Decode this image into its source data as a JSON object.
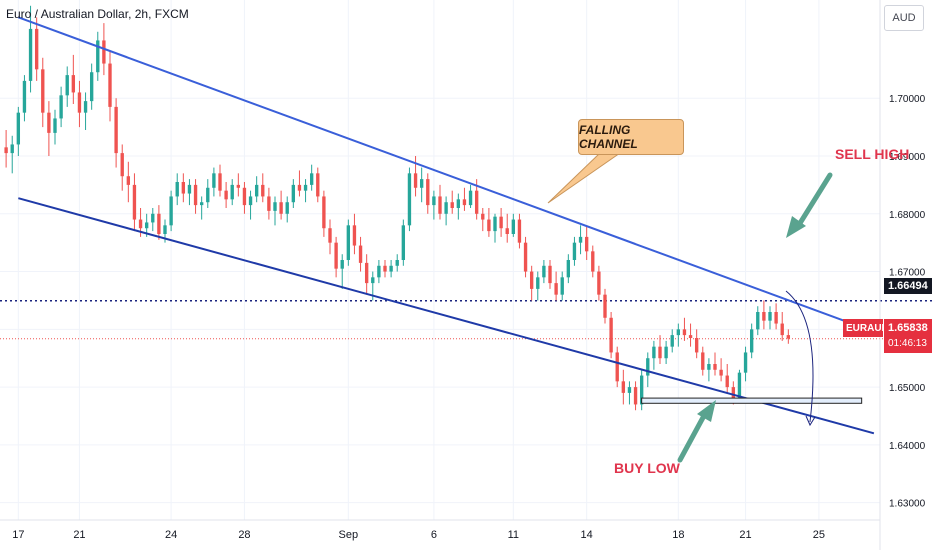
{
  "header": {
    "title": "Euro / Australian Dollar, 2h, FXCM",
    "currency": "AUD"
  },
  "annotations": {
    "channel_label": "FALLING CHANNEL",
    "sell_label": "SELL HIGH",
    "buy_label": "BUY LOW"
  },
  "price_tags": {
    "level_price": "1.66494",
    "symbol": "EURAUD",
    "last_price": "1.65838",
    "countdown": "01:46:13"
  },
  "colors": {
    "up": "#26a69a",
    "down": "#ef5350",
    "channel_upper": "#3a5fd9",
    "channel_lower": "#1f3aa8",
    "sell_buy_text": "#e0354d",
    "arrow": "#5aa38f",
    "grid": "#f0f3fa",
    "axis_text": "#131722"
  },
  "chart_data": {
    "type": "candlestick",
    "y_axis": {
      "range": [
        1.627,
        1.717
      ],
      "ticks": [
        "1.70000",
        "1.69000",
        "1.68000",
        "1.67000",
        "1.66000",
        "1.65000",
        "1.64000",
        "1.63000"
      ],
      "tick_values": [
        1.7,
        1.69,
        1.68,
        1.67,
        1.66,
        1.65,
        1.64,
        1.63
      ]
    },
    "x_axis": {
      "ticks": [
        "17",
        "21",
        "24",
        "28",
        "Sep",
        "6",
        "11",
        "14",
        "18",
        "21",
        "25"
      ],
      "tick_index": [
        2,
        12,
        27,
        39,
        56,
        70,
        83,
        95,
        110,
        121,
        133
      ],
      "index_range": [
        -1,
        143
      ]
    },
    "series": [
      {
        "ohlc": [
          [
            1.6915,
            1.6945,
            1.688,
            1.6905
          ],
          [
            1.6905,
            1.6935,
            1.687,
            1.692
          ],
          [
            1.692,
            1.6985,
            1.69,
            1.6975
          ],
          [
            1.6975,
            1.704,
            1.696,
            1.703
          ],
          [
            1.703,
            1.716,
            1.701,
            1.712
          ],
          [
            1.712,
            1.714,
            1.703,
            1.705
          ],
          [
            1.705,
            1.707,
            1.695,
            1.6975
          ],
          [
            1.6975,
            1.6995,
            1.69,
            1.694
          ],
          [
            1.694,
            1.698,
            1.692,
            1.6965
          ],
          [
            1.6965,
            1.702,
            1.695,
            1.7005
          ],
          [
            1.7005,
            1.7055,
            1.6985,
            1.704
          ],
          [
            1.704,
            1.7075,
            1.699,
            1.701
          ],
          [
            1.701,
            1.703,
            1.695,
            1.6975
          ],
          [
            1.6975,
            1.701,
            1.6945,
            1.6995
          ],
          [
            1.6995,
            1.706,
            1.698,
            1.7045
          ],
          [
            1.7045,
            1.7115,
            1.703,
            1.71
          ],
          [
            1.71,
            1.713,
            1.704,
            1.706
          ],
          [
            1.706,
            1.708,
            1.696,
            1.6985
          ],
          [
            1.6985,
            1.7,
            1.688,
            1.6905
          ],
          [
            1.6905,
            1.692,
            1.684,
            1.6865
          ],
          [
            1.6865,
            1.689,
            1.682,
            1.685
          ],
          [
            1.685,
            1.687,
            1.677,
            1.679
          ],
          [
            1.679,
            1.681,
            1.676,
            1.6775
          ],
          [
            1.6775,
            1.68,
            1.676,
            1.6785
          ],
          [
            1.6785,
            1.681,
            1.677,
            1.68
          ],
          [
            1.68,
            1.6815,
            1.6755,
            1.6765
          ],
          [
            1.6765,
            1.679,
            1.675,
            1.678
          ],
          [
            1.678,
            1.684,
            1.677,
            1.683
          ],
          [
            1.683,
            1.687,
            1.6815,
            1.6855
          ],
          [
            1.6855,
            1.687,
            1.682,
            1.6835
          ],
          [
            1.6835,
            1.686,
            1.6815,
            1.685
          ],
          [
            1.685,
            1.686,
            1.68,
            1.6815
          ],
          [
            1.6815,
            1.683,
            1.679,
            1.682
          ],
          [
            1.682,
            1.686,
            1.681,
            1.6845
          ],
          [
            1.6845,
            1.688,
            1.683,
            1.687
          ],
          [
            1.687,
            1.6885,
            1.683,
            1.684
          ],
          [
            1.684,
            1.6855,
            1.681,
            1.6825
          ],
          [
            1.6825,
            1.686,
            1.6815,
            1.685
          ],
          [
            1.685,
            1.687,
            1.683,
            1.6845
          ],
          [
            1.6845,
            1.6855,
            1.68,
            1.6815
          ],
          [
            1.6815,
            1.684,
            1.679,
            1.683
          ],
          [
            1.683,
            1.6865,
            1.682,
            1.685
          ],
          [
            1.685,
            1.687,
            1.682,
            1.683
          ],
          [
            1.683,
            1.6845,
            1.679,
            1.6805
          ],
          [
            1.6805,
            1.683,
            1.678,
            1.682
          ],
          [
            1.682,
            1.684,
            1.679,
            1.68
          ],
          [
            1.68,
            1.683,
            1.6785,
            1.682
          ],
          [
            1.682,
            1.686,
            1.681,
            1.685
          ],
          [
            1.685,
            1.6875,
            1.683,
            1.684
          ],
          [
            1.684,
            1.686,
            1.682,
            1.685
          ],
          [
            1.685,
            1.6885,
            1.684,
            1.687
          ],
          [
            1.687,
            1.688,
            1.682,
            1.683
          ],
          [
            1.683,
            1.684,
            1.676,
            1.6775
          ],
          [
            1.6775,
            1.679,
            1.673,
            1.675
          ],
          [
            1.675,
            1.676,
            1.669,
            1.6705
          ],
          [
            1.6705,
            1.673,
            1.667,
            1.672
          ],
          [
            1.672,
            1.679,
            1.671,
            1.678
          ],
          [
            1.678,
            1.68,
            1.673,
            1.6745
          ],
          [
            1.6745,
            1.676,
            1.67,
            1.6715
          ],
          [
            1.6715,
            1.673,
            1.666,
            1.668
          ],
          [
            1.668,
            1.67,
            1.665,
            1.669
          ],
          [
            1.669,
            1.672,
            1.668,
            1.671
          ],
          [
            1.671,
            1.672,
            1.669,
            1.67
          ],
          [
            1.67,
            1.672,
            1.669,
            1.671
          ],
          [
            1.671,
            1.673,
            1.67,
            1.672
          ],
          [
            1.672,
            1.679,
            1.671,
            1.678
          ],
          [
            1.678,
            1.688,
            1.677,
            1.687
          ],
          [
            1.687,
            1.69,
            1.683,
            1.6845
          ],
          [
            1.6845,
            1.688,
            1.682,
            1.686
          ],
          [
            1.686,
            1.687,
            1.68,
            1.6815
          ],
          [
            1.6815,
            1.684,
            1.679,
            1.683
          ],
          [
            1.683,
            1.685,
            1.679,
            1.68
          ],
          [
            1.68,
            1.683,
            1.678,
            1.682
          ],
          [
            1.682,
            1.684,
            1.68,
            1.681
          ],
          [
            1.681,
            1.6835,
            1.679,
            1.6825
          ],
          [
            1.6825,
            1.6845,
            1.6805,
            1.6815
          ],
          [
            1.6815,
            1.685,
            1.681,
            1.684
          ],
          [
            1.684,
            1.686,
            1.679,
            1.68
          ],
          [
            1.68,
            1.681,
            1.677,
            1.679
          ],
          [
            1.679,
            1.681,
            1.676,
            1.677
          ],
          [
            1.677,
            1.68,
            1.675,
            1.6795
          ],
          [
            1.6795,
            1.681,
            1.676,
            1.6775
          ],
          [
            1.6775,
            1.68,
            1.675,
            1.6765
          ],
          [
            1.6765,
            1.68,
            1.676,
            1.679
          ],
          [
            1.679,
            1.68,
            1.674,
            1.675
          ],
          [
            1.675,
            1.676,
            1.669,
            1.67
          ],
          [
            1.67,
            1.671,
            1.665,
            1.667
          ],
          [
            1.667,
            1.67,
            1.665,
            1.669
          ],
          [
            1.669,
            1.672,
            1.668,
            1.671
          ],
          [
            1.671,
            1.672,
            1.667,
            1.668
          ],
          [
            1.668,
            1.67,
            1.665,
            1.666
          ],
          [
            1.666,
            1.67,
            1.665,
            1.669
          ],
          [
            1.669,
            1.673,
            1.668,
            1.672
          ],
          [
            1.672,
            1.676,
            1.671,
            1.675
          ],
          [
            1.675,
            1.678,
            1.673,
            1.676
          ],
          [
            1.676,
            1.678,
            1.672,
            1.6735
          ],
          [
            1.6735,
            1.6745,
            1.669,
            1.67
          ],
          [
            1.67,
            1.671,
            1.665,
            1.666
          ],
          [
            1.666,
            1.667,
            1.661,
            1.662
          ],
          [
            1.662,
            1.663,
            1.655,
            1.656
          ],
          [
            1.656,
            1.657,
            1.65,
            1.651
          ],
          [
            1.651,
            1.653,
            1.647,
            1.649
          ],
          [
            1.649,
            1.651,
            1.647,
            1.65
          ],
          [
            1.65,
            1.651,
            1.646,
            1.647
          ],
          [
            1.647,
            1.653,
            1.646,
            1.652
          ],
          [
            1.652,
            1.656,
            1.65,
            1.655
          ],
          [
            1.655,
            1.658,
            1.653,
            1.657
          ],
          [
            1.657,
            1.659,
            1.654,
            1.655
          ],
          [
            1.655,
            1.658,
            1.654,
            1.657
          ],
          [
            1.657,
            1.66,
            1.656,
            1.659
          ],
          [
            1.659,
            1.661,
            1.657,
            1.66
          ],
          [
            1.66,
            1.662,
            1.658,
            1.659
          ],
          [
            1.659,
            1.661,
            1.657,
            1.6585
          ],
          [
            1.6585,
            1.66,
            1.655,
            1.656
          ],
          [
            1.656,
            1.657,
            1.652,
            1.653
          ],
          [
            1.653,
            1.655,
            1.651,
            1.654
          ],
          [
            1.654,
            1.656,
            1.652,
            1.653
          ],
          [
            1.653,
            1.655,
            1.651,
            1.652
          ],
          [
            1.652,
            1.654,
            1.649,
            1.65
          ],
          [
            1.65,
            1.651,
            1.647,
            1.648
          ],
          [
            1.648,
            1.653,
            1.6475,
            1.6525
          ],
          [
            1.6525,
            1.657,
            1.651,
            1.656
          ],
          [
            1.656,
            1.661,
            1.655,
            1.66
          ],
          [
            1.66,
            1.664,
            1.659,
            1.663
          ],
          [
            1.663,
            1.665,
            1.66,
            1.6615
          ],
          [
            1.6615,
            1.664,
            1.66,
            1.663
          ],
          [
            1.663,
            1.6645,
            1.66,
            1.661
          ],
          [
            1.661,
            1.663,
            1.658,
            1.659
          ],
          [
            1.659,
            1.66,
            1.6575,
            1.6584
          ]
        ]
      }
    ],
    "levels": [
      {
        "value": 1.66494,
        "style": "dotted",
        "label": "1.66494"
      },
      {
        "value": 1.65838,
        "style": "dotted",
        "label": "1.65838"
      }
    ],
    "channel": {
      "upper": [
        [
          2,
          1.714
        ],
        [
          142,
          1.6596
        ]
      ],
      "lower": [
        [
          2,
          1.6827
        ],
        [
          142,
          1.642
        ]
      ]
    },
    "support_zone": {
      "x": [
        104,
        140
      ],
      "y": [
        1.6472,
        1.6481
      ]
    }
  }
}
